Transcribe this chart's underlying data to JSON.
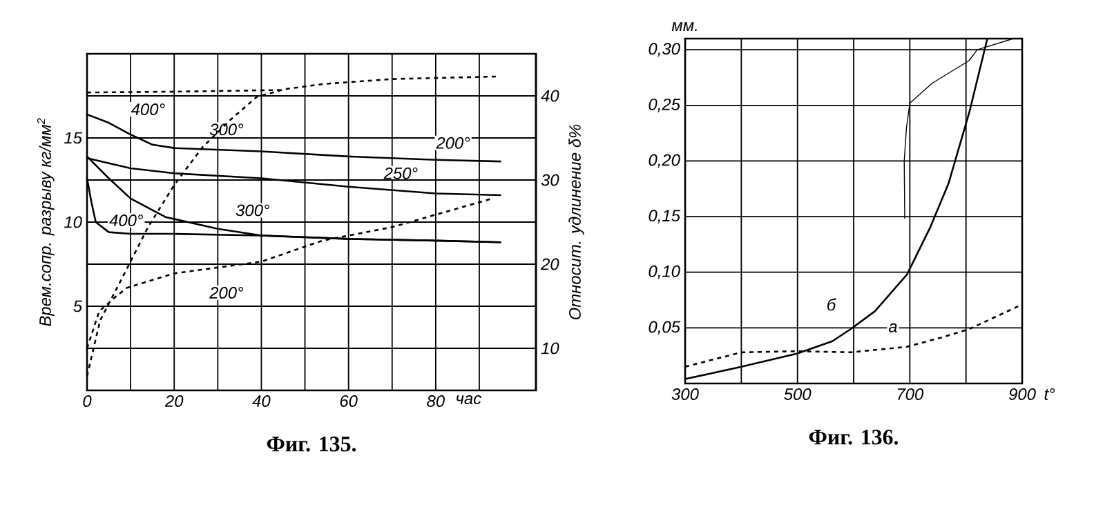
{
  "chart_data": [
    {
      "type": "line",
      "title": "Фиг. 135.",
      "xlabel": "час",
      "ylabel": "Врем.сопр. разрыву кг/мм$^{2}$",
      "y2label": "Относит. удлинение δ%",
      "grid": true,
      "xlim": [
        0,
        103
      ],
      "xticks": [
        0,
        {
          "value": 10,
          "label": null
        },
        20,
        {
          "value": 30,
          "label": null
        },
        40,
        {
          "value": 50,
          "label": null
        },
        60,
        {
          "value": 70,
          "label": null
        },
        80,
        {
          "value": 90,
          "label": null
        }
      ],
      "ylim": [
        0,
        20
      ],
      "yticks": [
        5,
        10,
        15
      ],
      "y2lim": [
        5,
        45
      ],
      "y2ticks": [
        10,
        20,
        30,
        40
      ],
      "series": [
        {
          "name": "200°",
          "color": "#000000",
          "line_style": "solid",
          "x": [
            0,
            5,
            10,
            15,
            20,
            40,
            60,
            80,
            95
          ],
          "values": [
            16.4,
            15.9,
            15.2,
            14.6,
            14.4,
            14.2,
            13.9,
            13.7,
            13.6
          ]
        },
        {
          "name": "250°",
          "color": "#000000",
          "line_style": "solid",
          "x": [
            0,
            10,
            20,
            40,
            60,
            80,
            95
          ],
          "values": [
            13.8,
            13.2,
            12.9,
            12.6,
            12.1,
            11.7,
            11.6
          ]
        },
        {
          "name": "300°",
          "color": "#000000",
          "line_style": "solid",
          "x": [
            0,
            5,
            10,
            18,
            30,
            40,
            60,
            80,
            95
          ],
          "values": [
            13.9,
            12.6,
            11.4,
            10.3,
            9.6,
            9.2,
            9.0,
            8.9,
            8.8
          ]
        },
        {
          "name": "400°",
          "color": "#000000",
          "line_style": "solid",
          "x": [
            0,
            1,
            2,
            5,
            10,
            20,
            40,
            60,
            80,
            95
          ],
          "values": [
            12.6,
            11.2,
            10.0,
            9.4,
            9.3,
            9.3,
            9.2,
            9.0,
            8.9,
            8.8
          ]
        },
        {
          "name": "400°",
          "color": "#000000",
          "line_style": "dashed",
          "axis": "y2",
          "x": [
            0,
            20,
            45
          ],
          "values": [
            40.4,
            40.5,
            40.7
          ]
        },
        {
          "name": "300°",
          "color": "#000000",
          "line_style": "dashed",
          "axis": "y2",
          "x": [
            0,
            3,
            8.6,
            14,
            20,
            26.5,
            33,
            39,
            45.5,
            54,
            70,
            94
          ],
          "values": [
            6.7,
            13.3,
            18.9,
            24.4,
            29.4,
            33.9,
            37.2,
            39.9,
            40.8,
            41.4,
            42,
            42.3
          ]
        },
        {
          "name": "200°",
          "color": "#000000",
          "line_style": "dashed",
          "axis": "y2",
          "x": [
            0,
            2.8,
            6.5,
            9.2,
            20,
            40,
            54,
            70,
            93
          ],
          "values": [
            10,
            14.4,
            16.1,
            17.2,
            18.9,
            20.3,
            22.8,
            24.4,
            27.8
          ]
        }
      ]
    },
    {
      "type": "line",
      "title": "Фиг. 136.",
      "xlabel": "t°",
      "ylabel": "мм.",
      "grid": true,
      "xlim": [
        300,
        900
      ],
      "xticks": [
        300,
        {
          "value": 400,
          "label": null
        },
        500,
        {
          "value": 600,
          "label": null
        },
        700,
        {
          "value": 800,
          "label": null
        },
        900
      ],
      "ylim": [
        0,
        0.31
      ],
      "yticks": [
        {
          "value": 0.05,
          "label": "0,05"
        },
        {
          "value": 0.1,
          "label": "0,10"
        },
        {
          "value": 0.15,
          "label": "0,15"
        },
        {
          "value": 0.2,
          "label": "0,20"
        },
        {
          "value": 0.25,
          "label": "0,25"
        },
        {
          "value": 0.3,
          "label": "0,30"
        }
      ],
      "series": [
        {
          "name": "б",
          "color": "#000000",
          "line_style": "solid",
          "x": [
            300,
            400,
            500,
            562,
            595,
            638,
            695,
            736,
            769,
            806,
            822,
            838
          ],
          "values": [
            0.004,
            0.015,
            0.027,
            0.038,
            0.049,
            0.065,
            0.098,
            0.14,
            0.18,
            0.244,
            0.277,
            0.31
          ]
        },
        {
          "name": "а",
          "color": "#000000",
          "line_style": "dashed",
          "x": [
            300,
            400,
            500,
            595,
            695,
            761,
            806,
            900
          ],
          "values": [
            0.015,
            0.028,
            0.029,
            0.028,
            0.033,
            0.042,
            0.049,
            0.071
          ]
        },
        {
          "color": "#000000",
          "line_style": "solid",
          "x": [
            691,
            690,
            694,
            700,
            740,
            805,
            820,
            884
          ],
          "values": [
            0.148,
            0.2,
            0.23,
            0.252,
            0.27,
            0.29,
            0.3,
            0.31
          ]
        }
      ]
    }
  ]
}
